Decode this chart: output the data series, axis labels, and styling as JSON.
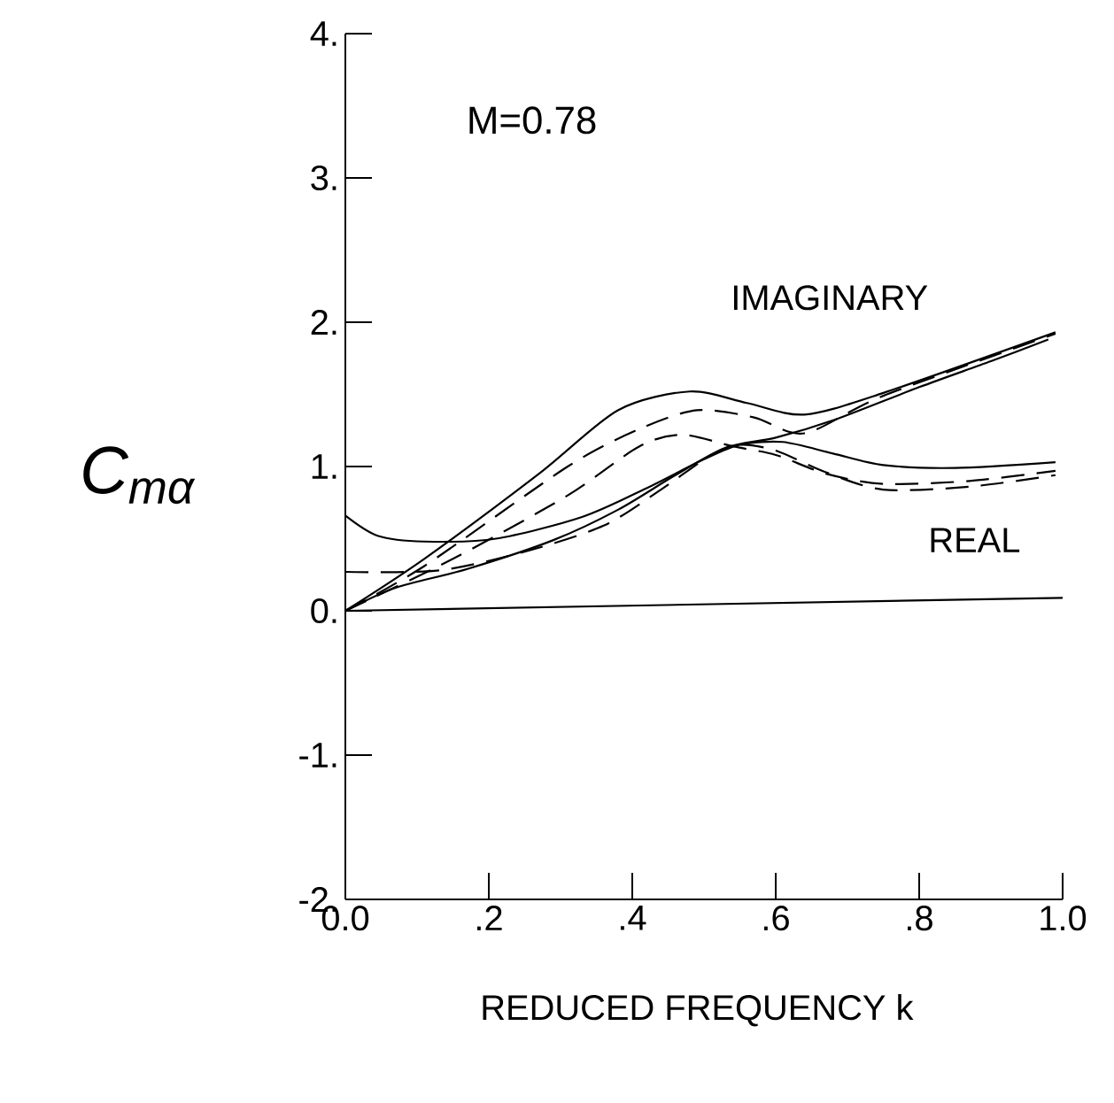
{
  "chart_data": {
    "type": "line",
    "xlabel": "REDUCED FREQUENCY   k",
    "ylabel": "C$_{mα}$",
    "xlim": [
      0,
      1.0
    ],
    "ylim": [
      -2,
      4
    ],
    "xticks": [
      {
        "value": 0,
        "label": "0.0"
      },
      {
        "value": 0.2,
        "label": ".2"
      },
      {
        "value": 0.4,
        "label": ".4"
      },
      {
        "value": 0.6,
        "label": ".6"
      },
      {
        "value": 0.8,
        "label": ".8"
      },
      {
        "value": 1.0,
        "label": "1.0"
      }
    ],
    "yticks": [
      {
        "value": -2,
        "label": "-2."
      },
      {
        "value": -1,
        "label": "-1."
      },
      {
        "value": 0,
        "label": "0."
      },
      {
        "value": 1,
        "label": "1."
      },
      {
        "value": 2,
        "label": "2."
      },
      {
        "value": 3,
        "label": "3."
      },
      {
        "value": 4,
        "label": "4."
      }
    ],
    "annotations": [
      "M=0.78",
      "IMAGINARY",
      "REAL"
    ],
    "series": [
      {
        "color": "#000000",
        "line_style": "solid",
        "x": [
          0,
          1.0
        ],
        "values": [
          0,
          0.09
        ]
      },
      {
        "color": "#000000",
        "line_style": "solid",
        "x": [
          0,
          0.11,
          0.27,
          0.38,
          0.48,
          0.56,
          0.64,
          0.75,
          0.99
        ],
        "values": [
          0,
          0.36,
          0.95,
          1.39,
          1.52,
          1.44,
          1.36,
          1.51,
          1.93
        ]
      },
      {
        "color": "#000000",
        "line_style": "dashed",
        "x": [
          0,
          0.11,
          0.31,
          0.41,
          0.49,
          0.57,
          0.64,
          0.75,
          0.99
        ],
        "values": [
          0,
          0.31,
          1.0,
          1.26,
          1.39,
          1.34,
          1.23,
          1.49,
          1.92
        ]
      },
      {
        "color": "#000000",
        "line_style": "dashed",
        "x": [
          0,
          0.15,
          0.31,
          0.41,
          0.47,
          0.54,
          0.6,
          0.67,
          0.75,
          0.87,
          0.99
        ],
        "values": [
          0,
          0.36,
          0.8,
          1.14,
          1.22,
          1.14,
          1.08,
          0.95,
          0.88,
          0.9,
          0.97
        ]
      },
      {
        "color": "#000000",
        "line_style": "solid",
        "x": [
          0,
          0.045,
          0.11,
          0.21,
          0.33,
          0.42,
          0.5,
          0.55,
          0.61,
          0.68,
          0.75,
          0.85,
          0.99
        ],
        "values": [
          0.66,
          0.52,
          0.48,
          0.5,
          0.65,
          0.85,
          1.05,
          1.15,
          1.17,
          1.09,
          1.01,
          0.99,
          1.03
        ]
      },
      {
        "color": "#000000",
        "line_style": "dashed",
        "x": [
          0,
          0.13,
          0.25,
          0.36,
          0.44,
          0.51,
          0.55,
          0.6,
          0.67,
          0.75,
          0.87,
          0.99
        ],
        "values": [
          0.27,
          0.28,
          0.41,
          0.59,
          0.84,
          1.08,
          1.15,
          1.11,
          0.96,
          0.84,
          0.86,
          0.94
        ]
      },
      {
        "color": "#000000",
        "line_style": "solid",
        "x": [
          0,
          0.07,
          0.17,
          0.29,
          0.38,
          0.46,
          0.53,
          0.6,
          0.68,
          0.8,
          0.9,
          0.98
        ],
        "values": [
          0,
          0.16,
          0.29,
          0.49,
          0.7,
          0.94,
          1.13,
          1.2,
          1.32,
          1.55,
          1.73,
          1.88
        ]
      }
    ]
  }
}
